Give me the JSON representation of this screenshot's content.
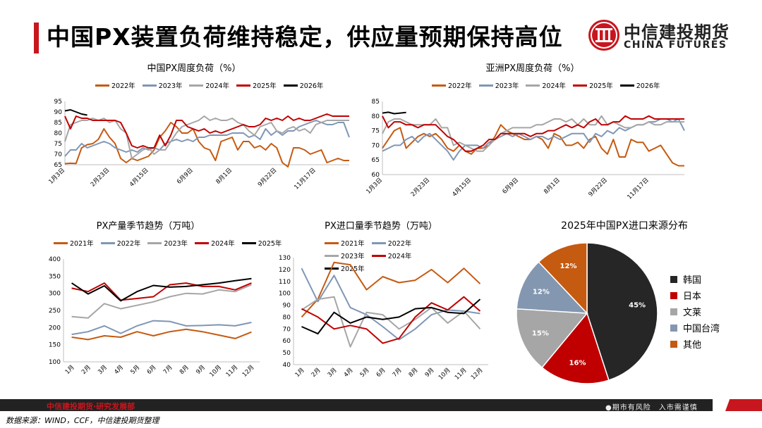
{
  "page": {
    "title": "中国PX装置负荷维持稳定，供应量预期保持高位",
    "logo_cn": "中信建投期货",
    "logo_en": "CHINA FUTURES",
    "footer_left": "中信建投期货·研究发展部",
    "footer_right": "●期市有风险　入市需谨慎",
    "source": "数据来源：WIND，CCF，中信建投期货整理"
  },
  "colors": {
    "y2021": "#c55a11",
    "y2022": "#7f96b5",
    "y2023": "#a6a6a6",
    "y2024": "#c00000",
    "y2025": "#000000",
    "red": "#c8161e"
  },
  "chart_data": [
    {
      "id": "cn_px_load",
      "type": "line",
      "title": "中国PX周度负荷（%）",
      "ylim": [
        65,
        95
      ],
      "yticks": [
        65,
        70,
        75,
        80,
        85,
        90,
        95
      ],
      "x_tick_labels": [
        "1月3日",
        "2月23日",
        "4月15日",
        "6月9日",
        "8月1日",
        "9月22日",
        "11月17日"
      ],
      "x_count": 52,
      "series": [
        {
          "name": "2022年",
          "color": "#c55a11",
          "values": [
            65.5,
            65.7,
            65.6,
            73,
            74.5,
            75,
            77,
            82,
            78,
            75,
            68,
            66,
            68,
            67,
            68,
            69,
            72,
            78,
            81,
            85,
            83,
            80,
            80,
            82,
            76,
            73,
            72,
            67,
            76,
            77,
            78,
            72,
            76,
            76,
            73,
            74,
            72,
            75,
            73,
            66,
            64,
            73,
            73,
            72,
            70,
            71,
            72,
            66,
            67,
            68,
            67,
            67
          ]
        },
        {
          "name": "2023年",
          "color": "#7f96b5",
          "values": [
            69,
            72,
            72,
            75,
            73,
            74,
            75,
            76,
            75,
            73,
            72,
            71,
            72,
            71,
            73,
            72,
            73,
            72,
            75,
            76,
            77,
            76,
            77,
            76,
            78,
            78,
            79,
            79,
            79,
            79,
            80,
            80,
            80,
            78,
            79,
            77,
            82,
            79,
            81,
            79,
            81,
            81,
            83,
            84,
            85,
            86,
            85,
            84,
            84,
            85,
            85,
            78
          ]
        },
        {
          "name": "2024年",
          "color": "#a6a6a6",
          "values": [
            76,
            84,
            85,
            86,
            86,
            87,
            86,
            87,
            85,
            86,
            82,
            80,
            68,
            70,
            72,
            73,
            70,
            72,
            72,
            76,
            80,
            83,
            84,
            85,
            86,
            88,
            86,
            87,
            86,
            86,
            87,
            85,
            84,
            81,
            79,
            83,
            84,
            85,
            81,
            80,
            82,
            83,
            81,
            82,
            80,
            84,
            85,
            86,
            86,
            86,
            86,
            86
          ]
        },
        {
          "name": "2025年",
          "color": "#c00000",
          "values": [
            88,
            82,
            88,
            87,
            87,
            86,
            86,
            86,
            86,
            86,
            85,
            80,
            74,
            73,
            74,
            73,
            73,
            79,
            74,
            79,
            86,
            86,
            83,
            82,
            81,
            82,
            80,
            81,
            80,
            81,
            82,
            83,
            84,
            83,
            83,
            84,
            87,
            86,
            87,
            86,
            88,
            86,
            87,
            86,
            86,
            87,
            88,
            89,
            88,
            88,
            88,
            88
          ]
        },
        {
          "name": "2026年",
          "color": "#000000",
          "values": [
            90.5,
            91,
            90,
            89,
            88.5
          ]
        }
      ]
    },
    {
      "id": "asia_px_load",
      "type": "line",
      "title": "亚洲PX周度负荷（%）",
      "ylim": [
        60,
        85
      ],
      "yticks": [
        60,
        65,
        70,
        75,
        80,
        85
      ],
      "x_tick_labels": [
        "1月3日",
        "2月23日",
        "4月15日",
        "6月9日",
        "8月1日",
        "9月22日",
        "11月17日"
      ],
      "x_count": 52,
      "series": [
        {
          "name": "2022年",
          "color": "#c55a11",
          "values": [
            69,
            72,
            75,
            76,
            69,
            71,
            73,
            74,
            73,
            74,
            72,
            69,
            68,
            70,
            68,
            67,
            69,
            69,
            70,
            73,
            77,
            75,
            74,
            73,
            72,
            72,
            73,
            72,
            69,
            74,
            73,
            70,
            70,
            71,
            69,
            72,
            73,
            69,
            67,
            72,
            66,
            66,
            72,
            71,
            71,
            68,
            69,
            70,
            67,
            64,
            63,
            63
          ]
        },
        {
          "name": "2023年",
          "color": "#7f96b5",
          "values": [
            68,
            69,
            70,
            70,
            72,
            73,
            71,
            73,
            74,
            72,
            70,
            68,
            65,
            68,
            70,
            70,
            70,
            69,
            71,
            72,
            73,
            74,
            73,
            74,
            73,
            72,
            73,
            73,
            72,
            73,
            72,
            73,
            74,
            74,
            74,
            71,
            74,
            73,
            75,
            74,
            76,
            75,
            76,
            77,
            77,
            78,
            78,
            79,
            79,
            78,
            79,
            75
          ]
        },
        {
          "name": "2024年",
          "color": "#a6a6a6",
          "values": [
            74,
            78,
            79,
            79,
            78,
            77,
            77,
            77,
            77,
            79,
            76,
            76,
            70,
            71,
            70,
            69,
            68,
            68,
            70,
            72,
            74,
            75,
            76,
            76,
            76,
            76,
            77,
            77,
            78,
            79,
            79,
            78,
            79,
            77,
            79,
            77,
            77,
            80,
            77,
            78,
            77,
            76,
            76,
            77,
            77,
            78,
            77,
            77,
            78,
            78,
            78,
            78
          ]
        },
        {
          "name": "2025年",
          "color": "#c00000",
          "values": [
            80,
            76,
            78,
            78,
            77,
            77,
            76,
            77,
            77,
            77,
            75,
            73,
            72,
            70,
            68,
            68,
            69,
            70,
            72,
            72,
            74,
            74,
            74,
            74,
            74,
            73,
            74,
            74,
            75,
            75,
            76,
            77,
            76,
            77,
            76,
            78,
            79,
            77,
            77,
            78,
            78,
            80,
            79,
            79,
            79,
            80,
            79,
            79,
            79,
            79,
            79,
            79
          ]
        },
        {
          "name": "2026年",
          "color": "#000000",
          "values": [
            81,
            81.3,
            80.8,
            81,
            81.2
          ]
        }
      ]
    },
    {
      "id": "px_output_seasonal",
      "type": "line",
      "title": "PX产量季节趋势（万吨）",
      "ylim": [
        100,
        400
      ],
      "yticks": [
        100,
        150,
        200,
        250,
        300,
        350,
        400
      ],
      "categories": [
        "1月",
        "2月",
        "3月",
        "4月",
        "5月",
        "6月",
        "7月",
        "8月",
        "9月",
        "10月",
        "11月",
        "12月"
      ],
      "series": [
        {
          "name": "2021年",
          "color": "#c55a11",
          "values": [
            172,
            165,
            176,
            172,
            188,
            176,
            188,
            195,
            188,
            178,
            168,
            187
          ]
        },
        {
          "name": "2022年",
          "color": "#7f96b5",
          "values": [
            180,
            188,
            205,
            183,
            205,
            220,
            218,
            205,
            206,
            208,
            205,
            215
          ]
        },
        {
          "name": "2023年",
          "color": "#a6a6a6",
          "values": [
            232,
            228,
            270,
            255,
            265,
            275,
            290,
            300,
            298,
            310,
            305,
            325
          ]
        },
        {
          "name": "2024年",
          "color": "#c00000",
          "values": [
            315,
            305,
            330,
            280,
            285,
            290,
            325,
            330,
            320,
            320,
            310,
            330
          ]
        },
        {
          "name": "2025年",
          "color": "#000000",
          "values": [
            330,
            298,
            322,
            278,
            305,
            323,
            318,
            320,
            325,
            330,
            337,
            343
          ]
        }
      ]
    },
    {
      "id": "px_import_seasonal",
      "type": "line",
      "title": "PX进口量季节趋势（万吨）",
      "ylim": [
        40,
        130
      ],
      "yticks": [
        40,
        50,
        60,
        70,
        80,
        90,
        100,
        110,
        120,
        130
      ],
      "categories": [
        "1月",
        "2月",
        "3月",
        "4月",
        "5月",
        "6月",
        "7月",
        "8月",
        "9月",
        "10月",
        "11月",
        "12月"
      ],
      "series": [
        {
          "name": "2021年",
          "color": "#c55a11",
          "values": [
            80,
            95,
            126,
            124,
            103,
            114,
            109,
            111,
            120,
            109,
            121,
            108
          ]
        },
        {
          "name": "2022年",
          "color": "#7f96b5",
          "values": [
            121,
            93,
            115,
            88,
            82,
            72,
            61,
            70,
            82,
            86,
            85,
            83
          ]
        },
        {
          "name": "2023年",
          "color": "#a6a6a6",
          "values": [
            86,
            95,
            97,
            55,
            84,
            82,
            70,
            78,
            88,
            75,
            85,
            70
          ]
        },
        {
          "name": "2024年",
          "color": "#c00000",
          "values": [
            87,
            80,
            70,
            73,
            70,
            58,
            62,
            80,
            92,
            86,
            97,
            85
          ]
        },
        {
          "name": "2025年",
          "color": "#000000",
          "values": [
            72,
            66,
            84,
            75,
            80,
            78,
            80,
            87,
            88,
            84,
            83,
            95
          ]
        }
      ]
    },
    {
      "id": "px_import_source_2025",
      "type": "pie",
      "title": "2025年中国PX进口来源分布",
      "labels": [
        "韩国",
        "日本",
        "文莱",
        "中国台湾",
        "其他"
      ],
      "values": [
        45,
        16,
        15,
        12,
        12
      ],
      "value_labels": [
        "45%",
        "16%",
        "15%",
        "12%",
        "12%"
      ],
      "colors": [
        "#262626",
        "#c00000",
        "#a6a6a6",
        "#8497b0",
        "#c55a11"
      ]
    }
  ]
}
